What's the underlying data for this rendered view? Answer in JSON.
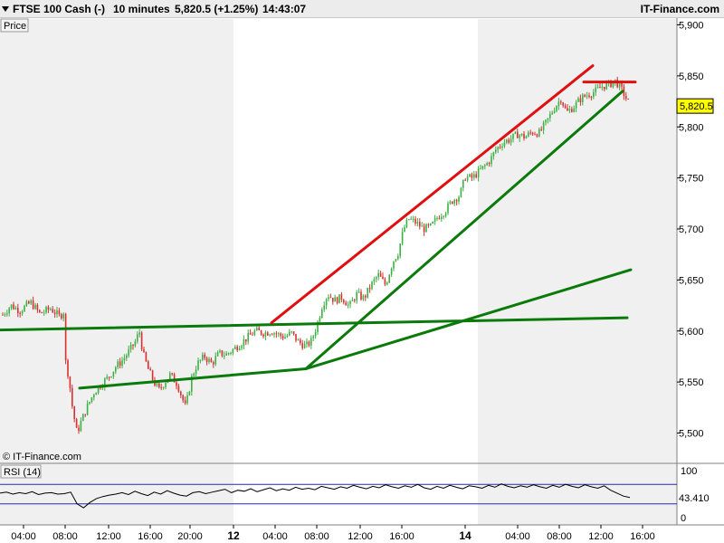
{
  "header": {
    "instrument": "FTSE 100 Cash (-)",
    "interval": "10 minutes",
    "price_change": "5,820.5 (+1.25%)",
    "time": "14:43:07",
    "brand": "IT-Finance.com"
  },
  "price_panel": {
    "label": "Price",
    "copyright": "© IT-Finance.com",
    "current_price_label": "5,820.5"
  },
  "rsi_panel": {
    "label": "RSI (14)",
    "current_label": "43.410",
    "scale_labels": [
      "100",
      "0"
    ]
  },
  "colors": {
    "up_candle": "#3cb043",
    "down_candle": "#d83030",
    "support_line": "#0a7a0a",
    "resistance_line": "#e01010",
    "price_tag": "#ffff00",
    "shade": "#f0f0f0",
    "rsi_line": "#000000",
    "rsi_band": "#2a2aa0"
  },
  "chart_data": [
    {
      "type": "candlestick",
      "ylim": [
        5480,
        5905
      ],
      "y_ticks": [
        5500,
        5550,
        5600,
        5650,
        5700,
        5750,
        5800,
        5850,
        5900
      ],
      "y_tick_labels": [
        "5,500",
        "5,550",
        "5,600",
        "5,650",
        "5,700",
        "5,750",
        "5,800",
        "5,850",
        "5,900"
      ],
      "x_tick_labels": [
        "04:00",
        "08:00",
        "12:00",
        "16:00",
        "20:00",
        "12",
        "04:00",
        "08:00",
        "12:00",
        "16:00",
        "14",
        "04:00",
        "08:00",
        "12:00",
        "16:00"
      ],
      "x_tick_bold": [
        false,
        false,
        false,
        false,
        false,
        true,
        false,
        false,
        false,
        false,
        true,
        false,
        false,
        false,
        false
      ],
      "shaded_sessions": [
        [
          0,
          258
        ],
        [
          528,
          748
        ]
      ],
      "trendlines": [
        {
          "role": "support",
          "from": [
            0,
            5601
          ],
          "to": [
            693,
            5613
          ]
        },
        {
          "role": "support",
          "from": [
            88,
            5544
          ],
          "to": [
            338,
            5563
          ]
        },
        {
          "role": "support",
          "from": [
            338,
            5563
          ],
          "to": [
            697,
            5660
          ]
        },
        {
          "role": "support",
          "from": [
            338,
            5563
          ],
          "to": [
            688,
            5835
          ]
        },
        {
          "role": "resistance",
          "from": [
            300,
            5608
          ],
          "to": [
            655,
            5860
          ]
        },
        {
          "role": "resistance",
          "from": [
            645,
            5844
          ],
          "to": [
            702,
            5844
          ]
        }
      ],
      "price_path": [
        [
          2,
          5615
        ],
        [
          12,
          5625
        ],
        [
          22,
          5620
        ],
        [
          34,
          5628
        ],
        [
          44,
          5617
        ],
        [
          56,
          5622
        ],
        [
          66,
          5614
        ],
        [
          71,
          5620
        ],
        [
          72,
          5572
        ],
        [
          76,
          5555
        ],
        [
          80,
          5525
        ],
        [
          85,
          5500
        ],
        [
          90,
          5512
        ],
        [
          96,
          5525
        ],
        [
          104,
          5540
        ],
        [
          112,
          5548
        ],
        [
          120,
          5555
        ],
        [
          128,
          5565
        ],
        [
          136,
          5572
        ],
        [
          144,
          5582
        ],
        [
          150,
          5590
        ],
        [
          154,
          5600
        ],
        [
          158,
          5578
        ],
        [
          164,
          5562
        ],
        [
          170,
          5550
        ],
        [
          176,
          5542
        ],
        [
          182,
          5550
        ],
        [
          188,
          5557
        ],
        [
          196,
          5548
        ],
        [
          205,
          5525
        ],
        [
          212,
          5555
        ],
        [
          218,
          5568
        ],
        [
          226,
          5575
        ],
        [
          234,
          5568
        ],
        [
          242,
          5578
        ],
        [
          250,
          5577
        ],
        [
          258,
          5582
        ],
        [
          266,
          5588
        ],
        [
          274,
          5594
        ],
        [
          282,
          5600
        ],
        [
          292,
          5598
        ],
        [
          300,
          5600
        ],
        [
          306,
          5597
        ],
        [
          314,
          5594
        ],
        [
          322,
          5598
        ],
        [
          330,
          5589
        ],
        [
          338,
          5585
        ],
        [
          344,
          5590
        ],
        [
          350,
          5605
        ],
        [
          356,
          5625
        ],
        [
          362,
          5636
        ],
        [
          370,
          5630
        ],
        [
          378,
          5633
        ],
        [
          386,
          5624
        ],
        [
          394,
          5636
        ],
        [
          402,
          5632
        ],
        [
          410,
          5645
        ],
        [
          418,
          5655
        ],
        [
          426,
          5645
        ],
        [
          434,
          5668
        ],
        [
          440,
          5677
        ],
        [
          446,
          5700
        ],
        [
          452,
          5710
        ],
        [
          460,
          5706
        ],
        [
          468,
          5700
        ],
        [
          476,
          5702
        ],
        [
          484,
          5712
        ],
        [
          492,
          5718
        ],
        [
          500,
          5728
        ],
        [
          508,
          5733
        ],
        [
          514,
          5751
        ],
        [
          522,
          5750
        ],
        [
          530,
          5757
        ],
        [
          536,
          5762
        ],
        [
          542,
          5768
        ],
        [
          548,
          5778
        ],
        [
          556,
          5785
        ],
        [
          564,
          5788
        ],
        [
          572,
          5793
        ],
        [
          580,
          5790
        ],
        [
          588,
          5795
        ],
        [
          596,
          5794
        ],
        [
          604,
          5805
        ],
        [
          612,
          5818
        ],
        [
          620,
          5828
        ],
        [
          626,
          5814
        ],
        [
          634,
          5820
        ],
        [
          642,
          5828
        ],
        [
          650,
          5832
        ],
        [
          658,
          5835
        ],
        [
          666,
          5840
        ],
        [
          674,
          5842
        ],
        [
          680,
          5845
        ],
        [
          686,
          5838
        ],
        [
          692,
          5828
        ],
        [
          696,
          5821
        ]
      ],
      "last_price": 5820.5
    },
    {
      "type": "line",
      "series": [
        {
          "name": "RSI (14)",
          "values": [
            52,
            54,
            50,
            53,
            51,
            55,
            49,
            52,
            53,
            50,
            51,
            54,
            30,
            22,
            33,
            41,
            45,
            48,
            50,
            53,
            49,
            56,
            51,
            47,
            54,
            50,
            57,
            52,
            48,
            46,
            53,
            55,
            51,
            54,
            57,
            60,
            53,
            58,
            56,
            61,
            55,
            59,
            63,
            57,
            61,
            58,
            64,
            60,
            62,
            59,
            66,
            63,
            60,
            65,
            62,
            68,
            64,
            61,
            66,
            63,
            69,
            65,
            62,
            67,
            64,
            70,
            63,
            60,
            66,
            62,
            68,
            64,
            61,
            67,
            65,
            62,
            68,
            64,
            71,
            66,
            63,
            67,
            64,
            69,
            65,
            62,
            68,
            64,
            70,
            66,
            63,
            69,
            65,
            62,
            67,
            58,
            52,
            46,
            43
          ]
        }
      ],
      "ylim": [
        0,
        100
      ],
      "bands": [
        30,
        70
      ]
    }
  ]
}
